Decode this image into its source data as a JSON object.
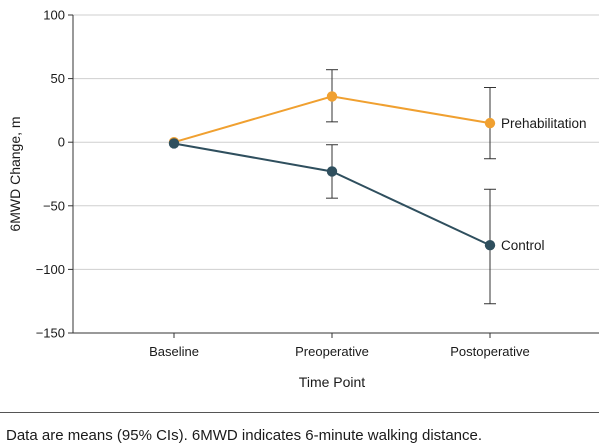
{
  "chart_data": {
    "type": "line",
    "title": "",
    "xlabel": "Time Point",
    "ylabel": "6MWD Change, m",
    "categories": [
      "Baseline",
      "Preoperative",
      "Postoperative"
    ],
    "ylim": [
      -150,
      100
    ],
    "yticks": [
      100,
      50,
      0,
      -50,
      -100,
      -150
    ],
    "ytick_labels": [
      "100",
      "50",
      "0",
      "−50",
      "−100",
      "−150"
    ],
    "grid": "horizontal",
    "legend": "inline labels at right end of each line",
    "series": [
      {
        "name": "Prehabilitation",
        "color": "#f0a030",
        "values": [
          0,
          36,
          15
        ],
        "ci_low": [
          null,
          16,
          -13
        ],
        "ci_high": [
          null,
          57,
          43
        ]
      },
      {
        "name": "Control",
        "color": "#2f4f5e",
        "values": [
          -1,
          -23,
          -81
        ],
        "ci_low": [
          null,
          -44,
          -127
        ],
        "ci_high": [
          null,
          -2,
          -37
        ]
      }
    ]
  },
  "caption": "Data are means (95% CIs). 6MWD indicates 6-minute walking distance."
}
